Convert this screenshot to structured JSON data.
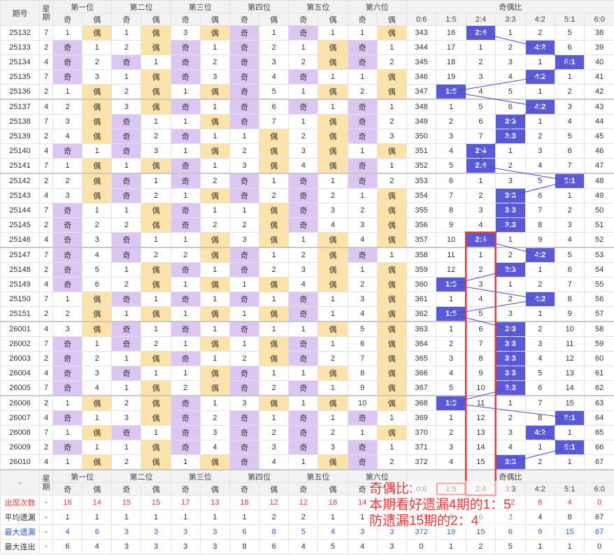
{
  "header": {
    "issue": "期号",
    "weekday": "星期",
    "positions": [
      "第一位",
      "第二位",
      "第三位",
      "第四位",
      "第五位",
      "第六位"
    ],
    "odd": "奇",
    "even": "偶",
    "ratio_title": "奇偶比",
    "ratios": [
      "0:6",
      "1:5",
      "2:4",
      "3:3",
      "4:2",
      "5:1",
      "6:0"
    ]
  },
  "rows": [
    {
      "issue": "25132",
      "weekday": "7",
      "cells": [
        1,
        "偶",
        1,
        "偶",
        3,
        "偶",
        "奇",
        1,
        "奇",
        1,
        1,
        "偶"
      ],
      "ratio": [
        343,
        16,
        "2:4",
        1,
        2,
        5,
        38
      ]
    },
    {
      "issue": "25133",
      "weekday": "2",
      "cells": [
        "奇",
        1,
        2,
        "偶",
        "奇",
        1,
        "奇",
        2,
        1,
        "偶",
        "奇",
        1
      ],
      "ratio": [
        344,
        17,
        1,
        2,
        "4:2",
        6,
        39
      ]
    },
    {
      "issue": "25134",
      "weekday": "4",
      "cells": [
        "奇",
        2,
        "奇",
        1,
        "奇",
        2,
        "奇",
        3,
        2,
        "偶",
        "奇",
        2
      ],
      "ratio": [
        345,
        18,
        2,
        3,
        1,
        "5:1",
        40
      ]
    },
    {
      "issue": "25135",
      "weekday": "7",
      "cells": [
        "奇",
        3,
        1,
        "偶",
        "奇",
        3,
        "奇",
        4,
        "奇",
        1,
        1,
        "偶"
      ],
      "ratio": [
        346,
        19,
        3,
        4,
        "4:2",
        1,
        41
      ]
    },
    {
      "issue": "25136",
      "weekday": "2",
      "cells": [
        1,
        "偶",
        2,
        "偶",
        1,
        "偶",
        "奇",
        5,
        1,
        "偶",
        2,
        "偶"
      ],
      "ratio": [
        347,
        "1:5",
        4,
        5,
        1,
        2,
        42
      ]
    },
    {
      "issue": "25137",
      "weekday": "4",
      "cells": [
        2,
        "偶",
        3,
        "偶",
        "奇",
        1,
        "奇",
        6,
        "奇",
        1,
        "奇",
        1
      ],
      "ratio": [
        348,
        1,
        5,
        6,
        "4:2",
        3,
        43
      ]
    },
    {
      "issue": "25138",
      "weekday": "7",
      "cells": [
        3,
        "偶",
        "奇",
        1,
        1,
        "偶",
        "奇",
        7,
        1,
        "偶",
        "奇",
        2
      ],
      "ratio": [
        349,
        2,
        6,
        "3:3",
        1,
        4,
        44
      ]
    },
    {
      "issue": "25139",
      "weekday": "2",
      "cells": [
        4,
        "偶",
        "奇",
        2,
        "奇",
        1,
        1,
        "偶",
        2,
        "偶",
        "奇",
        3
      ],
      "ratio": [
        350,
        3,
        7,
        "3:3",
        2,
        5,
        45
      ]
    },
    {
      "issue": "25140",
      "weekday": "4",
      "cells": [
        "奇",
        1,
        "奇",
        3,
        1,
        "偶",
        2,
        "偶",
        3,
        "偶",
        1,
        "偶"
      ],
      "ratio": [
        351,
        4,
        "2:4",
        1,
        3,
        6,
        46
      ]
    },
    {
      "issue": "25141",
      "weekday": "7",
      "cells": [
        1,
        "偶",
        1,
        "偶",
        "奇",
        1,
        3,
        "偶",
        4,
        "偶",
        "奇",
        1
      ],
      "ratio": [
        352,
        5,
        "2:4",
        2,
        4,
        7,
        47
      ]
    },
    {
      "issue": "25142",
      "weekday": "2",
      "cells": [
        2,
        "偶",
        "奇",
        1,
        "奇",
        2,
        "奇",
        1,
        "奇",
        1,
        "奇",
        2
      ],
      "ratio": [
        353,
        6,
        1,
        3,
        5,
        "5:1",
        48
      ]
    },
    {
      "issue": "25143",
      "weekday": "4",
      "cells": [
        3,
        "偶",
        "奇",
        2,
        1,
        "偶",
        "奇",
        2,
        "奇",
        2,
        1,
        "偶"
      ],
      "ratio": [
        354,
        7,
        2,
        "3:3",
        6,
        1,
        49
      ]
    },
    {
      "issue": "25144",
      "weekday": "7",
      "cells": [
        "奇",
        1,
        1,
        "偶",
        "奇",
        1,
        1,
        "偶",
        "奇",
        3,
        2,
        "偶"
      ],
      "ratio": [
        355,
        8,
        3,
        "3:3",
        7,
        2,
        50
      ]
    },
    {
      "issue": "25145",
      "weekday": "2",
      "cells": [
        "奇",
        2,
        2,
        "偶",
        "奇",
        2,
        2,
        "偶",
        "奇",
        4,
        3,
        "偶"
      ],
      "ratio": [
        356,
        9,
        4,
        "3:3",
        8,
        3,
        51
      ]
    },
    {
      "issue": "25146",
      "weekday": "4",
      "cells": [
        "奇",
        3,
        "奇",
        1,
        1,
        "偶",
        3,
        "偶",
        1,
        "偶",
        4,
        "偶"
      ],
      "ratio": [
        357,
        10,
        "2:4",
        1,
        9,
        4,
        52
      ]
    },
    {
      "issue": "25147",
      "weekday": "7",
      "cells": [
        "奇",
        4,
        "奇",
        2,
        2,
        "偶",
        "奇",
        1,
        2,
        "偶",
        "奇",
        1
      ],
      "ratio": [
        358,
        11,
        1,
        2,
        "4:2",
        5,
        53
      ]
    },
    {
      "issue": "25148",
      "weekday": "2",
      "cells": [
        "奇",
        5,
        1,
        "偶",
        "奇",
        1,
        "奇",
        2,
        3,
        "偶",
        1,
        "偶"
      ],
      "ratio": [
        359,
        12,
        2,
        "3:3",
        1,
        6,
        54
      ]
    },
    {
      "issue": "25149",
      "weekday": "4",
      "cells": [
        "奇",
        6,
        2,
        "偶",
        1,
        "偶",
        1,
        "偶",
        4,
        "偶",
        2,
        "偶"
      ],
      "ratio": [
        360,
        "1:5",
        3,
        1,
        2,
        7,
        55
      ]
    },
    {
      "issue": "25150",
      "weekday": "7",
      "cells": [
        1,
        "偶",
        "奇",
        1,
        "奇",
        1,
        "奇",
        1,
        "奇",
        1,
        3,
        "偶"
      ],
      "ratio": [
        361,
        1,
        4,
        2,
        "4:2",
        8,
        56
      ]
    },
    {
      "issue": "25151",
      "weekday": "2",
      "cells": [
        2,
        "偶",
        1,
        "偶",
        1,
        "偶",
        1,
        "偶",
        "奇",
        1,
        4,
        "偶"
      ],
      "ratio": [
        362,
        "1:5",
        5,
        3,
        1,
        9,
        57
      ]
    },
    {
      "issue": "26001",
      "weekday": "4",
      "cells": [
        3,
        "偶",
        "奇",
        1,
        "奇",
        1,
        "奇",
        1,
        1,
        "偶",
        5,
        "偶"
      ],
      "ratio": [
        363,
        1,
        6,
        "3:3",
        2,
        10,
        58
      ]
    },
    {
      "issue": "26002",
      "weekday": "7",
      "cells": [
        "奇",
        1,
        "奇",
        2,
        1,
        "偶",
        1,
        "偶",
        "奇",
        1,
        6,
        "偶"
      ],
      "ratio": [
        364,
        2,
        7,
        "3:3",
        3,
        11,
        59
      ]
    },
    {
      "issue": "26003",
      "weekday": "2",
      "cells": [
        "奇",
        2,
        1,
        "偶",
        "奇",
        1,
        2,
        "偶",
        "奇",
        2,
        7,
        "偶"
      ],
      "ratio": [
        365,
        3,
        8,
        "3:3",
        4,
        12,
        60
      ]
    },
    {
      "issue": "26004",
      "weekday": "4",
      "cells": [
        "奇",
        3,
        "奇",
        1,
        1,
        "偶",
        "奇",
        1,
        1,
        "偶",
        8,
        "偶"
      ],
      "ratio": [
        366,
        4,
        9,
        "3:3",
        5,
        13,
        61
      ]
    },
    {
      "issue": "26005",
      "weekday": "7",
      "cells": [
        "奇",
        4,
        1,
        "偶",
        2,
        "偶",
        "奇",
        2,
        "奇",
        1,
        9,
        "偶"
      ],
      "ratio": [
        367,
        5,
        10,
        "3:3",
        6,
        14,
        62
      ]
    },
    {
      "issue": "26006",
      "weekday": "2",
      "cells": [
        1,
        "偶",
        2,
        "偶",
        "奇",
        1,
        3,
        "偶",
        1,
        "偶",
        10,
        "偶"
      ],
      "ratio": [
        368,
        "1:5",
        11,
        1,
        7,
        15,
        63
      ]
    },
    {
      "issue": "26007",
      "weekday": "4",
      "cells": [
        "奇",
        1,
        3,
        "偶",
        "奇",
        2,
        "奇",
        1,
        "奇",
        1,
        "奇",
        1
      ],
      "ratio": [
        369,
        1,
        12,
        2,
        8,
        "5:1",
        64
      ]
    },
    {
      "issue": "26008",
      "weekday": "7",
      "cells": [
        1,
        "偶",
        "奇",
        1,
        "奇",
        3,
        "奇",
        2,
        "奇",
        2,
        1,
        "偶"
      ],
      "ratio": [
        370,
        2,
        13,
        3,
        "4:2",
        1,
        65
      ]
    },
    {
      "issue": "26009",
      "weekday": "2",
      "cells": [
        "奇",
        1,
        1,
        "偶",
        "奇",
        4,
        "奇",
        3,
        "奇",
        3,
        "奇",
        1
      ],
      "ratio": [
        371,
        3,
        14,
        4,
        1,
        "5:1",
        66
      ]
    },
    {
      "issue": "26010",
      "weekday": "4",
      "cells": [
        1,
        "偶",
        2,
        "偶",
        1,
        "偶",
        "奇",
        4,
        1,
        "偶",
        "奇",
        2
      ],
      "ratio": [
        372,
        4,
        15,
        "3:3",
        2,
        1,
        67
      ]
    }
  ],
  "footer_issue": "-",
  "stats": [
    {
      "label": "出现次数",
      "weekday": "-",
      "color": "#e53935",
      "values": [
        16,
        14,
        15,
        15,
        17,
        13,
        18,
        12,
        12,
        18,
        14,
        16,
        0,
        4,
        4,
        12,
        6,
        4,
        0
      ]
    },
    {
      "label": "平均遗漏",
      "weekday": "-",
      "color": "#333333",
      "values": [
        1,
        1,
        1,
        1,
        1,
        1,
        1,
        2,
        2,
        1,
        1,
        1,
        372,
        6,
        6,
        2,
        4,
        8,
        67
      ]
    },
    {
      "label": "最大遗漏",
      "weekday": "-",
      "color": "#2a5bd7",
      "values": [
        4,
        6,
        3,
        3,
        3,
        3,
        6,
        8,
        5,
        4,
        3,
        3,
        372,
        19,
        15,
        6,
        9,
        15,
        67
      ]
    },
    {
      "label": "最大连出",
      "weekday": "-",
      "color": "#333333",
      "values": [
        6,
        4,
        3,
        3,
        3,
        3,
        8,
        6,
        4,
        5,
        4,
        3,
        0,
        1,
        2,
        5,
        1,
        1,
        0
      ]
    }
  ],
  "note": {
    "title": "奇偶比:",
    "lines": [
      "本期看好遗漏4期的1：5",
      "防遗漏15期的2：4"
    ]
  }
}
